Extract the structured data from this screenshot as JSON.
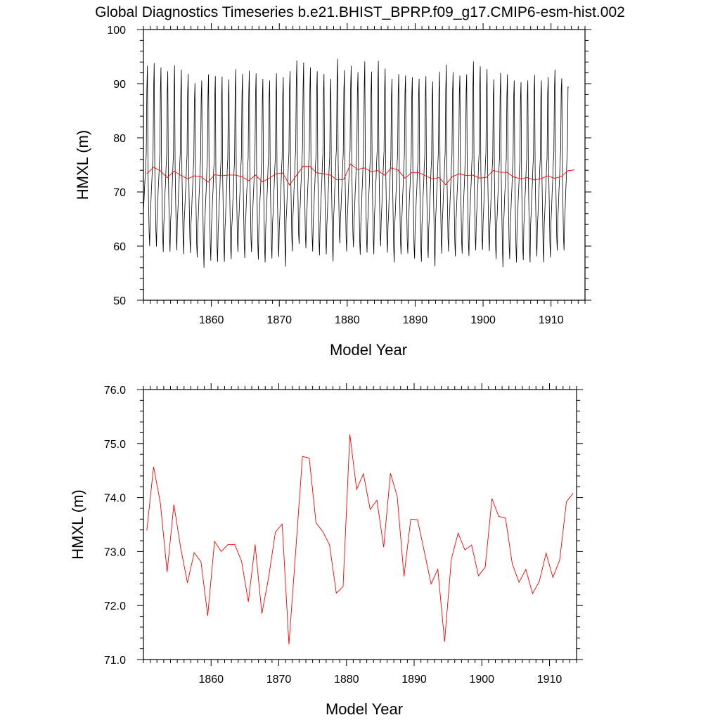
{
  "title": "Global Diagnostics Timeseries b.e21.BHIST_BPRP.f09_g17.CMIP6-esm-hist.002",
  "colors": {
    "monthly": "#000000",
    "annual": "#ff0000"
  },
  "chart_data": [
    {
      "type": "line",
      "xlabel": "Model Year",
      "ylabel": "HMXL (m)",
      "xlim": [
        1850,
        1915
      ],
      "ylim": [
        50,
        100
      ],
      "xticks": [
        1860,
        1870,
        1880,
        1890,
        1900,
        1910
      ],
      "yticks": [
        50,
        60,
        70,
        80,
        90,
        100
      ],
      "ytick_labels": [
        "50",
        "60",
        "70",
        "80",
        "90",
        "100"
      ],
      "grid": false,
      "series": [
        {
          "resolution": "monthly",
          "color": "#000000",
          "x_start": 1850.0,
          "x_step": 0.0833333,
          "values": [
            66.5,
            68.4,
            70.8,
            72.8,
            75.1,
            77.0,
            88.8,
            93.3,
            74.2,
            68.2,
            62.7,
            60.0,
            65.3,
            67.5,
            70.2,
            72.4,
            74.9,
            77.2,
            89.0,
            93.8,
            74.8,
            68.8,
            62.9,
            59.9,
            64.9,
            67.3,
            70.2,
            72.2,
            74.8,
            77.1,
            88.7,
            93.0,
            74.4,
            68.1,
            62.0,
            58.9,
            64.0,
            66.5,
            69.6,
            71.6,
            74.6,
            76.7,
            88.2,
            92.3,
            73.8,
            67.5,
            61.8,
            59.0,
            64.5,
            66.4,
            69.3,
            71.5,
            74.5,
            76.8,
            88.6,
            93.4,
            74.4,
            68.2,
            62.0,
            59.2,
            65.0,
            66.8,
            69.8,
            71.9,
            74.8,
            77.1,
            88.2,
            92.6,
            73.7,
            67.8,
            61.5,
            58.5,
            64.6,
            66.6,
            69.4,
            71.3,
            74.5,
            76.8,
            88.0,
            91.8,
            73.7,
            67.3,
            61.4,
            58.7,
            64.2,
            66.1,
            69.1,
            71.0,
            74.1,
            76.0,
            86.5,
            90.1,
            73.1,
            67.0,
            60.4,
            57.9,
            63.6,
            65.6,
            68.6,
            70.8,
            74.1,
            76.1,
            87.4,
            90.6,
            72.6,
            66.6,
            59.9,
            56.0,
            63.5,
            65.9,
            68.5,
            70.8,
            74.1,
            76.4,
            87.7,
            91.7,
            73.1,
            66.9,
            60.4,
            57.3,
            63.2,
            65.4,
            68.4,
            70.5,
            73.9,
            75.6,
            87.5,
            91.4,
            72.8,
            66.4,
            59.9,
            57.1,
            62.9,
            65.1,
            68.2,
            70.3,
            73.8,
            75.7,
            87.2,
            91.3,
            72.6,
            66.4,
            60.0,
            57.1,
            63.1,
            65.2,
            68.4,
            70.6,
            74.1,
            76.2,
            87.4,
            90.8,
            72.6,
            66.2,
            59.9,
            57.6,
            63.4,
            65.3,
            68.5,
            70.6,
            73.8,
            76.0,
            88.3,
            92.7,
            73.4,
            67.4,
            61.1,
            58.9,
            63.7,
            66.0,
            68.9,
            71.0,
            74.4,
            76.5,
            87.6,
            91.8,
            72.8,
            66.5,
            60.4,
            57.8,
            63.6,
            65.8,
            68.9,
            71.1,
            74.4,
            76.3,
            87.9,
            92.4,
            73.6,
            67.2,
            61.2,
            58.9,
            63.8,
            66.0,
            68.9,
            71.2,
            74.5,
            76.5,
            87.7,
            91.9,
            73.1,
            66.6,
            60.4,
            57.5,
            63.9,
            65.8,
            68.9,
            70.8,
            73.9,
            75.9,
            87.1,
            90.9,
            72.7,
            66.5,
            59.6,
            57.0,
            63.4,
            65.5,
            68.4,
            70.8,
            74.3,
            76.5,
            87.7,
            90.6,
            72.8,
            66.7,
            60.2,
            57.7,
            64.1,
            66.0,
            69.1,
            71.1,
            74.3,
            76.2,
            87.6,
            91.9,
            73.1,
            66.9,
            60.4,
            58.0,
            63.4,
            65.6,
            68.7,
            70.9,
            74.3,
            76.3,
            87.4,
            91.2,
            72.7,
            66.4,
            59.9,
            56.2,
            64.7,
            66.6,
            69.6,
            71.8,
            74.8,
            77.2,
            88.9,
            92.3,
            74.3,
            68.1,
            61.9,
            59.0,
            65.2,
            67.5,
            70.5,
            72.7,
            75.9,
            78.2,
            90.0,
            94.3,
            75.4,
            69.2,
            62.4,
            60.4,
            65.5,
            67.6,
            70.8,
            72.9,
            75.9,
            78.1,
            89.1,
            93.9,
            75.1,
            68.8,
            62.2,
            59.6,
            64.8,
            66.9,
            70.1,
            72.5,
            75.4,
            77.6,
            89.0,
            93.0,
            74.3,
            68.2,
            61.8,
            59.0,
            64.5,
            66.6,
            69.8,
            72.0,
            75.1,
            77.2,
            88.6,
            92.3,
            73.8,
            67.5,
            61.1,
            58.3,
            64.3,
            66.5,
            69.4,
            71.6,
            74.9,
            77.0,
            88.4,
            91.8,
            73.5,
            67.6,
            61.3,
            58.5,
            63.8,
            66.1,
            69.1,
            71.3,
            74.4,
            76.5,
            87.3,
            90.9,
            72.7,
            66.5,
            60.1,
            57.2,
            65.3,
            67.6,
            70.7,
            72.8,
            76.2,
            78.3,
            90.3,
            94.6,
            75.5,
            69.2,
            62.6,
            60.5,
            65.0,
            67.0,
            69.7,
            71.9,
            75.1,
            77.2,
            88.7,
            92.5,
            74.1,
            67.9,
            61.6,
            59.0,
            64.9,
            67.1,
            70.2,
            72.5,
            75.6,
            77.8,
            89.4,
            93.3,
            74.8,
            68.4,
            62.3,
            59.8,
            64.4,
            66.7,
            69.9,
            72.1,
            75.4,
            77.5,
            88.6,
            92.1,
            73.7,
            67.3,
            61.0,
            58.4,
            64.1,
            66.3,
            69.7,
            72.0,
            75.1,
            77.6,
            89.2,
            94.1,
            74.8,
            68.4,
            61.5,
            58.8,
            63.9,
            66.0,
            69.1,
            71.3,
            74.7,
            76.7,
            88.2,
            92.2,
            73.6,
            67.3,
            61.2,
            58.5,
            65.3,
            67.5,
            70.5,
            72.6,
            75.7,
            77.9,
            89.6,
            94.2,
            75.2,
            68.9,
            62.6,
            60.0,
            64.6,
            66.9,
            69.9,
            72.2,
            75.2,
            77.5,
            88.8,
            92.8,
            74.2,
            68.0,
            61.6,
            58.8,
            63.6,
            65.8,
            68.9,
            70.9,
            74.1,
            76.0,
            87.2,
            90.9,
            72.6,
            66.2,
            59.8,
            57.0,
            64.1,
            66.3,
            69.4,
            71.6,
            75.0,
            77.0,
            88.3,
            91.8,
            73.4,
            67.3,
            61.1,
            58.5,
            64.1,
            66.3,
            69.4,
            71.6,
            74.9,
            77.0,
            88.3,
            91.5,
            73.4,
            67.2,
            60.9,
            58.6,
            64.0,
            66.2,
            69.1,
            71.2,
            74.3,
            76.4,
            87.7,
            91.2,
            72.6,
            66.4,
            59.9,
            57.7,
            63.9,
            65.9,
            68.7,
            70.8,
            73.9,
            76.0,
            87.5,
            90.9,
            72.4,
            66.2,
            59.9,
            57.1,
            63.9,
            66.0,
            69.2,
            71.4,
            74.6,
            76.7,
            88.0,
            91.4,
            73.1,
            66.8,
            60.4,
            57.8,
            63.3,
            65.5,
            68.6,
            70.9,
            74.0,
            76.1,
            87.3,
            90.4,
            72.7,
            66.3,
            59.3,
            56.3,
            64.7,
            66.9,
            69.8,
            71.9,
            75.1,
            77.3,
            88.4,
            92.2,
            73.6,
            67.4,
            61.3,
            58.6,
            64.6,
            66.8,
            69.8,
            71.9,
            75.0,
            77.3,
            88.8,
            93.5,
            74.2,
            67.8,
            61.5,
            59.0,
            64.3,
            66.5,
            69.4,
            71.6,
            74.9,
            76.9,
            88.2,
            92.1,
            73.4,
            67.1,
            60.7,
            58.1,
            64.3,
            66.5,
            69.5,
            71.7,
            74.9,
            77.0,
            88.3,
            91.5,
            73.5,
            67.3,
            61.1,
            58.6,
            64.1,
            66.4,
            69.4,
            71.6,
            74.7,
            76.9,
            88.4,
            91.7,
            73.4,
            67.1,
            60.7,
            58.2,
            64.7,
            66.8,
            69.8,
            71.9,
            75.1,
            77.3,
            89.1,
            94.1,
            74.9,
            68.4,
            62.0,
            59.2,
            64.6,
            66.7,
            69.8,
            71.9,
            75.2,
            77.2,
            89.0,
            93.2,
            74.4,
            68.2,
            62.0,
            59.3,
            64.5,
            66.7,
            69.8,
            71.9,
            75.1,
            77.3,
            88.9,
            92.7,
            74.2,
            68.0,
            61.6,
            59.1,
            63.7,
            65.9,
            68.9,
            71.0,
            74.2,
            76.3,
            87.6,
            90.8,
            72.9,
            66.6,
            60.3,
            57.6,
            63.7,
            65.9,
            68.9,
            71.1,
            74.3,
            76.3,
            87.7,
            92.0,
            73.1,
            66.7,
            60.3,
            56.1,
            63.7,
            65.8,
            68.9,
            71.0,
            74.1,
            76.2,
            87.6,
            91.7,
            72.9,
            66.5,
            60.1,
            57.6,
            63.9,
            66.0,
            68.9,
            71.0,
            74.3,
            76.3,
            87.5,
            90.6,
            72.8,
            66.4,
            59.9,
            57.0,
            63.3,
            65.4,
            68.6,
            70.7,
            73.8,
            75.9,
            87.0,
            90.3,
            72.4,
            66.1,
            59.8,
            57.4,
            63.8,
            65.9,
            68.9,
            71.0,
            74.1,
            76.1,
            87.2,
            90.6,
            72.6,
            66.3,
            59.7,
            57.0,
            64.1,
            66.3,
            69.3,
            71.5,
            74.6,
            76.7,
            88.0,
            91.6,
            73.3,
            67.1,
            60.8,
            58.1,
            63.8,
            65.9,
            68.9,
            71.0,
            74.0,
            76.2,
            87.5,
            90.6,
            72.6,
            66.4,
            59.9,
            57.0,
            64.1,
            66.2,
            69.2,
            71.3,
            74.3,
            76.4,
            87.9,
            91.2,
            73.1,
            67.1,
            60.5,
            57.9,
            64.7,
            67.0,
            70.0,
            72.2,
            75.4,
            77.5,
            89.0,
            92.6,
            74.3,
            68.2,
            61.7,
            59.2,
            65.0,
            67.2,
            70.2,
            72.3,
            75.5,
            77.7,
            88.9,
            91.0,
            74.1,
            68.0,
            61.6,
            59.2,
            64.7,
            67.0,
            70.2,
            72.5,
            75.8,
            78.3,
            89.4,
            89.3
          ]
        },
        {
          "resolution": "annual",
          "color": "#ff0000",
          "x_start": 1850.5,
          "x_step": 1,
          "values": [
            73.39,
            74.57,
            73.9,
            72.62,
            73.87,
            73.07,
            72.42,
            72.98,
            72.81,
            71.81,
            73.19,
            73.0,
            73.13,
            73.13,
            72.82,
            72.07,
            73.13,
            71.85,
            72.52,
            73.36,
            73.51,
            71.28,
            73.01,
            74.76,
            74.73,
            73.53,
            73.37,
            73.12,
            72.23,
            72.35,
            75.17,
            74.15,
            74.44,
            73.78,
            73.95,
            73.08,
            74.45,
            74.02,
            72.54,
            73.6,
            73.59,
            73.0,
            72.4,
            72.67,
            71.33,
            72.86,
            73.34,
            73.03,
            73.12,
            72.55,
            72.71,
            73.98,
            73.65,
            73.62,
            72.77,
            72.43,
            72.67,
            72.22,
            72.45,
            72.97,
            72.52,
            72.84,
            73.92,
            74.08
          ]
        }
      ]
    },
    {
      "type": "line",
      "xlabel": "Model Year",
      "ylabel": "HMXL (m)",
      "xlim": [
        1850,
        1914
      ],
      "ylim": [
        71.0,
        76.0
      ],
      "xticks": [
        1860,
        1870,
        1880,
        1890,
        1900,
        1910
      ],
      "yticks": [
        71.0,
        72.0,
        73.0,
        74.0,
        75.0,
        76.0
      ],
      "ytick_labels": [
        "71.0",
        "72.0",
        "73.0",
        "74.0",
        "75.0",
        "76.0"
      ],
      "grid": false,
      "series": [
        {
          "resolution": "annual",
          "color": "#ff0000",
          "x_start": 1850.5,
          "x_step": 1,
          "values": [
            73.39,
            74.57,
            73.9,
            72.62,
            73.87,
            73.07,
            72.42,
            72.98,
            72.81,
            71.81,
            73.19,
            73.0,
            73.13,
            73.13,
            72.82,
            72.07,
            73.13,
            71.85,
            72.52,
            73.36,
            73.51,
            71.28,
            73.01,
            74.76,
            74.73,
            73.53,
            73.37,
            73.12,
            72.23,
            72.35,
            75.17,
            74.15,
            74.44,
            73.78,
            73.95,
            73.08,
            74.45,
            74.02,
            72.54,
            73.6,
            73.59,
            73.0,
            72.4,
            72.67,
            71.33,
            72.86,
            73.34,
            73.03,
            73.12,
            72.55,
            72.71,
            73.98,
            73.65,
            73.62,
            72.77,
            72.43,
            72.67,
            72.22,
            72.45,
            72.97,
            72.52,
            72.84,
            73.92,
            74.08
          ]
        }
      ]
    }
  ]
}
